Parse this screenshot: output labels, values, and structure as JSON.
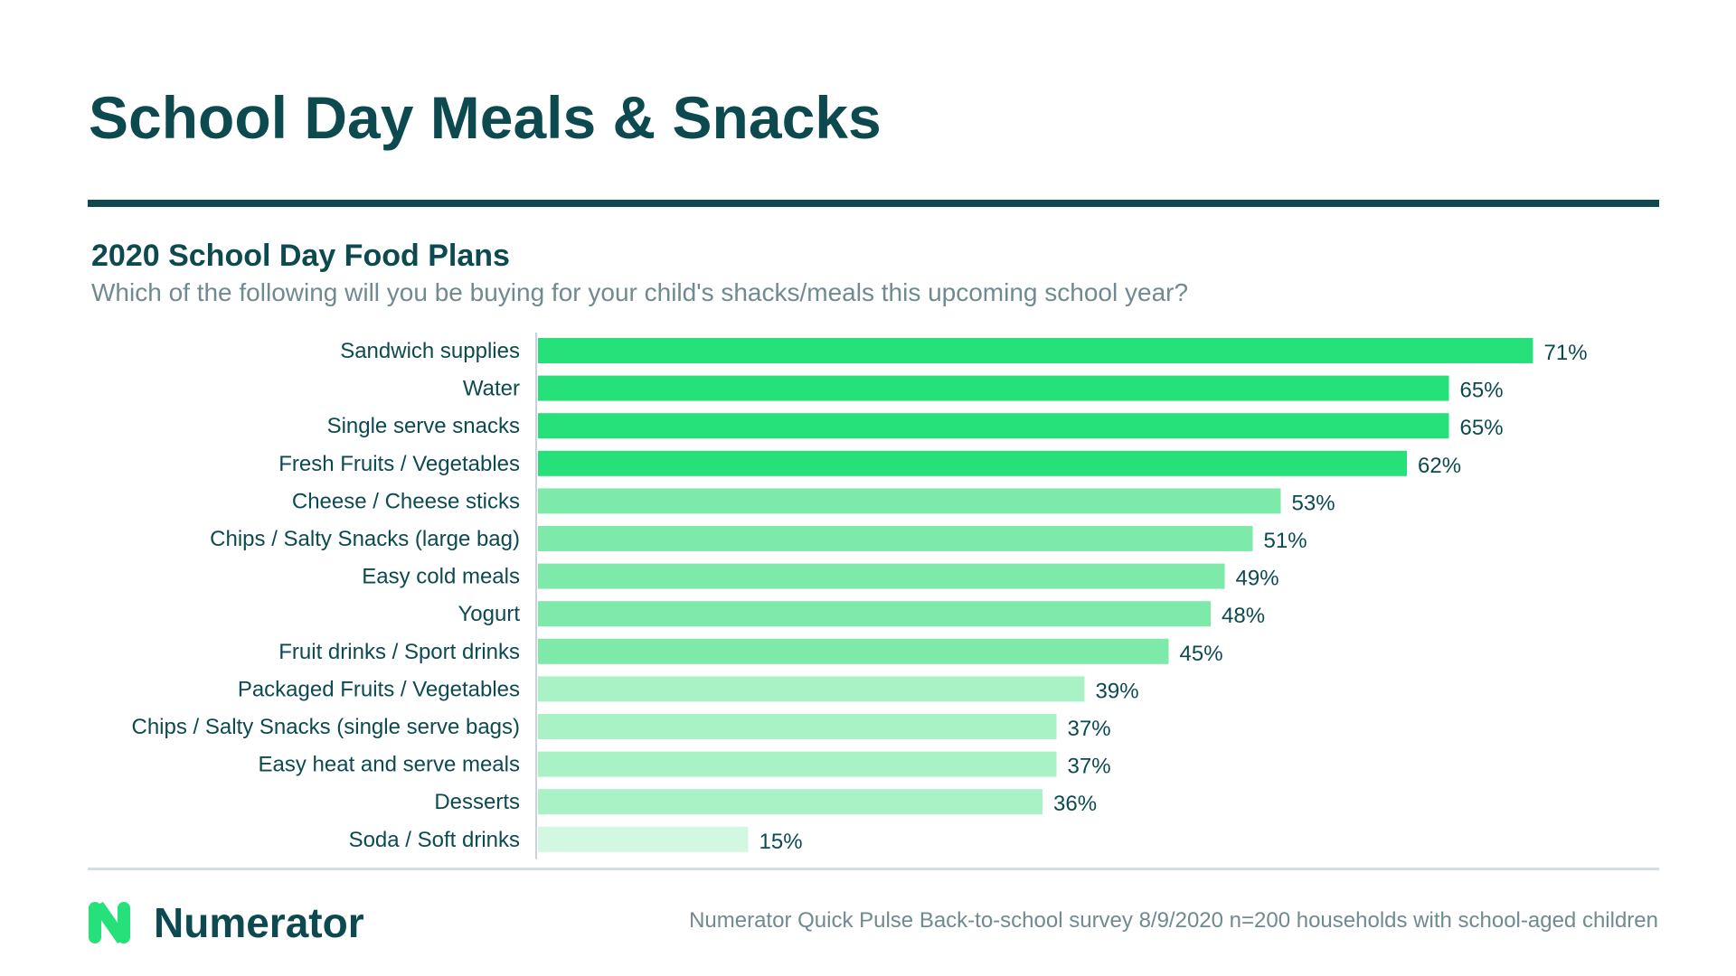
{
  "page": {
    "title": "School Day Meals & Snacks"
  },
  "brand": {
    "name": "Numerator",
    "logo_icon": "numerator-n-logo"
  },
  "footer": {
    "source": "Numerator Quick Pulse Back-to-school survey 8/9/2020 n=200 households with school-aged children"
  },
  "colors": {
    "dark_teal": "#0c4a50",
    "green_1": "#26e07a",
    "green_2": "#7eeaa9",
    "green_3": "#a8f2c6",
    "green_4": "#d3f8e1"
  },
  "chart_data": {
    "type": "bar",
    "orientation": "horizontal",
    "title": "2020 School Day Food Plans",
    "subtitle": "Which of the following will you be buying for your child's shacks/meals this upcoming school year?",
    "categories": [
      "Sandwich supplies",
      "Water",
      "Single serve snacks",
      "Fresh Fruits / Vegetables",
      "Cheese / Cheese sticks",
      "Chips / Salty Snacks (large bag)",
      "Easy cold meals",
      "Yogurt",
      "Fruit drinks / Sport drinks",
      "Packaged Fruits / Vegetables",
      "Chips / Salty Snacks (single serve bags)",
      "Easy heat and serve meals",
      "Desserts",
      "Soda / Soft drinks"
    ],
    "values": [
      71,
      65,
      65,
      62,
      53,
      51,
      49,
      48,
      45,
      39,
      37,
      37,
      36,
      15
    ],
    "value_labels": [
      "71%",
      "65%",
      "65%",
      "62%",
      "53%",
      "51%",
      "49%",
      "48%",
      "45%",
      "39%",
      "37%",
      "37%",
      "36%",
      "15%"
    ],
    "color_tiers": [
      1,
      1,
      1,
      1,
      2,
      2,
      2,
      2,
      2,
      3,
      3,
      3,
      3,
      4
    ],
    "xlim": [
      0,
      100
    ],
    "unit": "%",
    "grid": false,
    "legend": "none"
  }
}
